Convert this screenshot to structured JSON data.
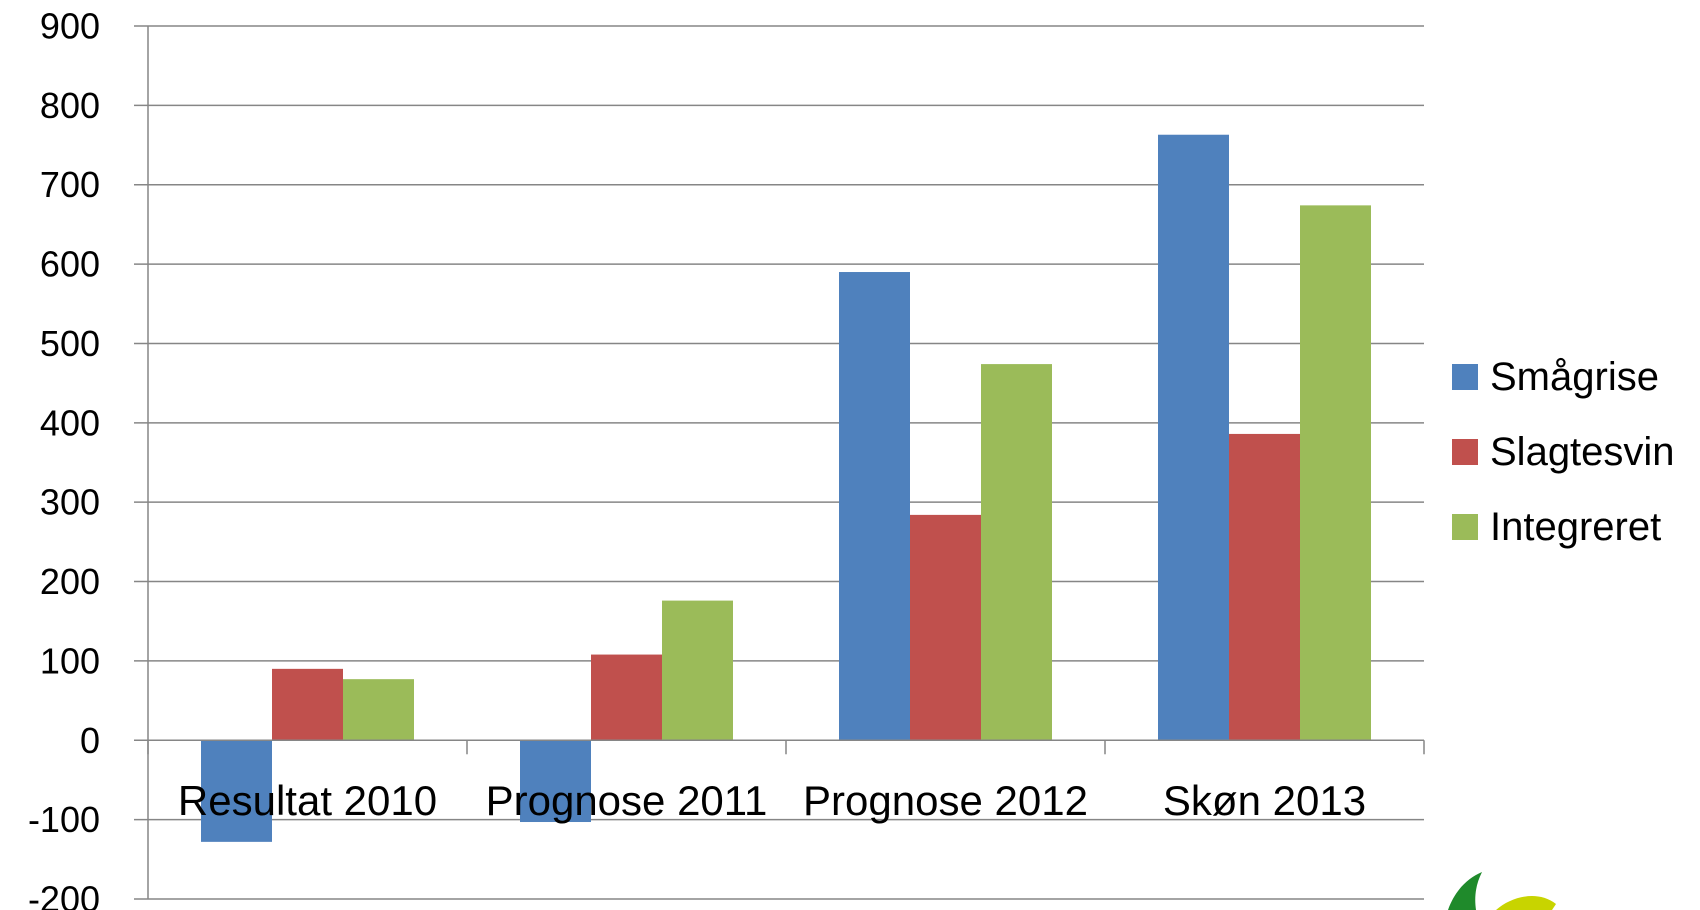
{
  "chart_data": {
    "type": "bar",
    "categories": [
      "Resultat 2010",
      "Prognose 2011",
      "Prognose 2012",
      "Skøn 2013"
    ],
    "series": [
      {
        "name": "Smågrise",
        "values": [
          -128,
          -103,
          590,
          763
        ],
        "color": "#4F81BD"
      },
      {
        "name": "Slagtesvin",
        "values": [
          90,
          108,
          284,
          386
        ],
        "color": "#C0504D"
      },
      {
        "name": "Integreret",
        "values": [
          77,
          176,
          474,
          674
        ],
        "color": "#9BBB59"
      }
    ],
    "ylim": [
      -200,
      900
    ],
    "yticks": [
      900,
      800,
      700,
      600,
      500,
      400,
      300,
      200,
      100,
      0,
      -100,
      -200
    ],
    "ytick_labels": [
      "900",
      "800",
      "700",
      "600",
      "500",
      "400",
      "300",
      "200",
      "100",
      "0",
      "-100",
      "-200"
    ],
    "grid": true,
    "legend_position": "right",
    "title": "",
    "xlabel": "",
    "ylabel": ""
  }
}
